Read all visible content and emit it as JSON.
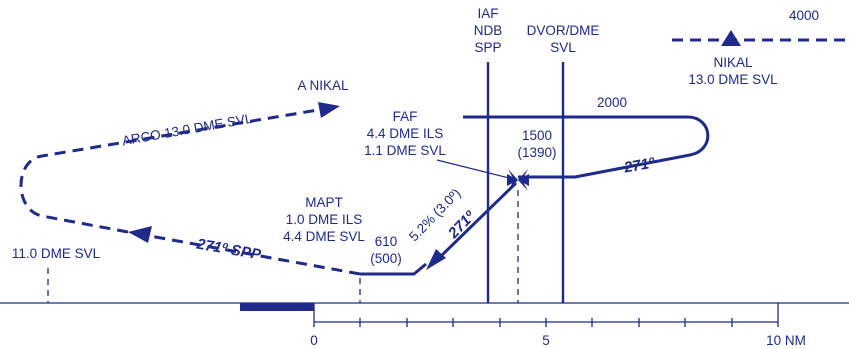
{
  "colors": {
    "ink": "#1f2a8a",
    "background": "#ffffff"
  },
  "fixes": {
    "iaf": {
      "line1": "IAF",
      "line2": "NDB",
      "line3": "SPP"
    },
    "dvor": {
      "line1": "DVOR/DME",
      "line2": "SVL"
    },
    "nikal": {
      "line1": "NIKAL",
      "line2": "13.0 DME SVL",
      "icon": "triangle-fix-icon"
    },
    "faf": {
      "line1": "FAF",
      "line2": "4.4 DME ILS",
      "line3": "1.1 DME SVL"
    },
    "mapt": {
      "line1": "MAPT",
      "line2": "1.0 DME ILS",
      "line3": "4.4 DME SVL"
    }
  },
  "altitudes": {
    "holding": "4000",
    "procedure_turn": "2000",
    "faf_alt": "1500",
    "faf_height": "(1390)",
    "mapt_alt": "610",
    "mapt_height": "(500)"
  },
  "labels": {
    "a_nikal": "A NIKAL",
    "arco": "ARCO 13.0 DME SVL",
    "outbound_course": "271º",
    "glidepath_gradient": "5.2% (3.0º)",
    "final_course": "271º",
    "missed_course": "271º SPP",
    "svl_11": "11.0 DME SVL"
  },
  "scale": {
    "unit_label": "10 NM",
    "ticks": [
      "0",
      "5",
      "10 NM"
    ]
  }
}
